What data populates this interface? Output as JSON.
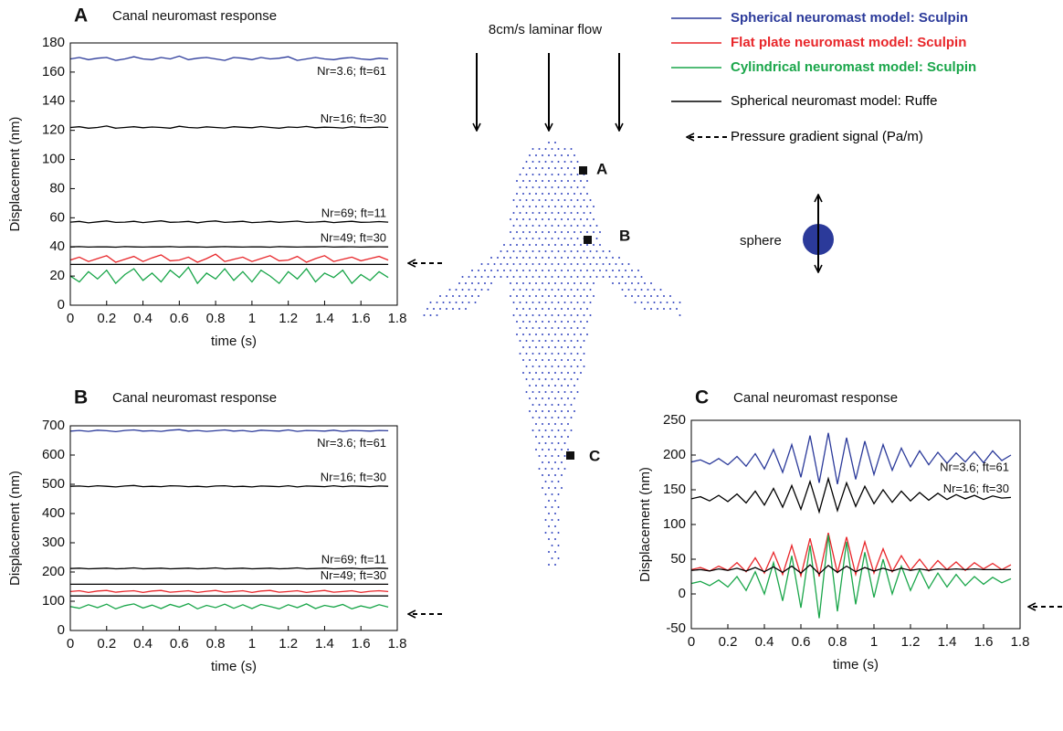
{
  "chart_data": [
    {
      "type": "line",
      "panel": "A",
      "title": "Canal neuromast response",
      "xlabel": "time (s)",
      "ylabel": "Displacement (nm)",
      "x": [
        0,
        0.05,
        0.1,
        0.15,
        0.2,
        0.25,
        0.3,
        0.35,
        0.4,
        0.45,
        0.5,
        0.55,
        0.6,
        0.65,
        0.7,
        0.75,
        0.8,
        0.85,
        0.9,
        0.95,
        1,
        1.05,
        1.1,
        1.15,
        1.2,
        1.25,
        1.3,
        1.35,
        1.4,
        1.45,
        1.5,
        1.55,
        1.6,
        1.65,
        1.7,
        1.75
      ],
      "xlim": [
        0,
        1.8
      ],
      "xticks": [
        0,
        0.2,
        0.4,
        0.6,
        0.8,
        1,
        1.2,
        1.4,
        1.6,
        1.8
      ],
      "ylim": [
        0,
        180
      ],
      "yticks": [
        0,
        20,
        40,
        60,
        80,
        100,
        120,
        140,
        160,
        180
      ],
      "series": [
        {
          "color": "#2b3a9a",
          "label": "Nr=3.6; ft=61",
          "values": [
            169,
            170,
            168.5,
            169.5,
            170,
            168,
            169,
            170.5,
            169,
            168.5,
            170,
            169,
            171,
            168.5,
            169.5,
            170,
            169,
            168,
            170,
            169.5,
            168.5,
            170,
            169,
            169.5,
            170.5,
            168,
            169,
            170,
            169,
            168.5,
            169.5,
            170,
            169,
            168.5,
            169.5,
            169
          ]
        },
        {
          "color": "#000000",
          "label": "Nr=16; ft=30",
          "values": [
            122,
            122.5,
            121.5,
            122,
            123,
            121.5,
            122,
            122.5,
            121.8,
            122.3,
            122,
            121.5,
            122.8,
            122,
            121.7,
            122.4,
            122,
            121.6,
            122.5,
            122.1,
            121.8,
            122.6,
            122,
            121.5,
            122.3,
            122,
            122.7,
            121.8,
            122.2,
            122,
            121.6,
            122.4,
            122,
            121.9,
            122.3,
            122
          ]
        },
        {
          "color": "#000000",
          "label": "Nr=69; ft=11",
          "values": [
            57,
            57.5,
            56.5,
            57.2,
            57.8,
            56.8,
            57,
            57.6,
            56.7,
            57.3,
            57.9,
            56.9,
            57.1,
            57.5,
            56.6,
            57.4,
            57.8,
            56.8,
            57.2,
            57.6,
            56.7,
            57,
            57.5,
            56.9,
            57.3,
            57.7,
            56.8,
            57.1,
            57.5,
            56.7,
            57.2,
            57.6,
            56.9,
            57,
            57.4,
            57
          ]
        },
        {
          "color": "#000000",
          "label": "Nr=49; ft=30",
          "values": [
            40,
            40.2,
            39.9,
            40.1,
            40,
            39.8,
            40.2,
            40,
            39.9,
            40.1,
            40,
            40.2,
            39.9,
            40,
            40.1,
            39.8,
            40,
            40.2,
            40,
            39.9,
            40.1,
            40,
            39.8,
            40.2,
            40,
            39.9,
            40.1,
            40,
            40.2,
            39.9,
            40,
            40.1,
            39.9,
            40,
            40.1,
            40
          ]
        },
        {
          "color": "#e8262a",
          "values": [
            31,
            33,
            30,
            32,
            34,
            29.5,
            31.5,
            33.5,
            30,
            32.5,
            34.5,
            30.5,
            31,
            33,
            29.5,
            32,
            35,
            30,
            31.5,
            33,
            30,
            32,
            34,
            30.5,
            31,
            33.5,
            29.5,
            32,
            34,
            30,
            31.5,
            33,
            30.5,
            32,
            33.5,
            31
          ]
        },
        {
          "color": "#000000",
          "values": [
            28,
            28,
            28,
            28,
            28,
            28,
            28,
            28,
            28,
            28,
            28,
            28,
            28,
            28,
            28,
            28,
            28,
            28,
            28,
            28,
            28,
            28,
            28,
            28,
            28,
            28,
            28,
            28,
            28,
            28,
            28,
            28,
            28,
            28,
            28,
            28
          ]
        },
        {
          "color": "#1aa64a",
          "values": [
            20,
            16,
            23,
            18,
            24,
            15,
            21,
            25,
            17,
            22,
            16,
            24,
            19,
            26,
            15,
            22,
            18,
            25,
            17,
            23,
            16,
            24,
            20,
            15,
            23,
            18,
            25,
            16,
            22,
            19,
            24,
            15,
            21,
            17,
            23,
            19
          ]
        }
      ]
    },
    {
      "type": "line",
      "panel": "B",
      "title": "Canal neuromast response",
      "xlabel": "time (s)",
      "ylabel": "Displacement (nm)",
      "x": [
        0,
        0.05,
        0.1,
        0.15,
        0.2,
        0.25,
        0.3,
        0.35,
        0.4,
        0.45,
        0.5,
        0.55,
        0.6,
        0.65,
        0.7,
        0.75,
        0.8,
        0.85,
        0.9,
        0.95,
        1,
        1.05,
        1.1,
        1.15,
        1.2,
        1.25,
        1.3,
        1.35,
        1.4,
        1.45,
        1.5,
        1.55,
        1.6,
        1.65,
        1.7,
        1.75
      ],
      "xlim": [
        0,
        1.8
      ],
      "xticks": [
        0,
        0.2,
        0.4,
        0.6,
        0.8,
        1,
        1.2,
        1.4,
        1.6,
        1.8
      ],
      "ylim": [
        0,
        700
      ],
      "yticks": [
        0,
        100,
        200,
        300,
        400,
        500,
        600,
        700
      ],
      "series": [
        {
          "color": "#2b3a9a",
          "label": "Nr=3.6; ft=61",
          "values": [
            682,
            684,
            681,
            685,
            683,
            680,
            684,
            686,
            682,
            683,
            681,
            685,
            687,
            682,
            684,
            681,
            683,
            686,
            682,
            684,
            680,
            685,
            683,
            682,
            686,
            681,
            684,
            683,
            682,
            685,
            681,
            684,
            683,
            682,
            684,
            683
          ]
        },
        {
          "color": "#000000",
          "label": "Nr=16; ft=30",
          "values": [
            493,
            494,
            492,
            495,
            493,
            491,
            494,
            496,
            492,
            493,
            492,
            495,
            494,
            492,
            493,
            491,
            494,
            495,
            492,
            493,
            491,
            494,
            493,
            492,
            495,
            491,
            494,
            493,
            492,
            495,
            492,
            494,
            493,
            492,
            494,
            493
          ]
        },
        {
          "color": "#000000",
          "label": "Nr=69; ft=11",
          "values": [
            212,
            213,
            211,
            212,
            213,
            211,
            212,
            214,
            211,
            212,
            213,
            211,
            212,
            213,
            211,
            212,
            214,
            211,
            212,
            213,
            211,
            212,
            213,
            211,
            212,
            214,
            211,
            212,
            213,
            211,
            212,
            213,
            211,
            212,
            213,
            212
          ]
        },
        {
          "color": "#000000",
          "label": "Nr=49; ft=30",
          "values": [
            158,
            158,
            158,
            158,
            158,
            158,
            158,
            158,
            158,
            158,
            158,
            158,
            158,
            158,
            158,
            158,
            158,
            158,
            158,
            158,
            158,
            158,
            158,
            158,
            158,
            158,
            158,
            158,
            158,
            158,
            158,
            158,
            158,
            158,
            158,
            158
          ]
        },
        {
          "color": "#e8262a",
          "values": [
            133,
            136,
            130,
            135,
            137,
            131,
            134,
            136,
            130,
            135,
            137,
            131,
            133,
            136,
            130,
            134,
            137,
            131,
            133,
            136,
            130,
            135,
            137,
            131,
            133,
            136,
            130,
            134,
            137,
            131,
            133,
            136,
            130,
            134,
            136,
            133
          ]
        },
        {
          "color": "#000000",
          "values": [
            118,
            118,
            118,
            118,
            118,
            118,
            118,
            118,
            118,
            118,
            118,
            118,
            118,
            118,
            118,
            118,
            118,
            118,
            118,
            118,
            118,
            118,
            118,
            118,
            118,
            118,
            118,
            118,
            118,
            118,
            118,
            118,
            118,
            118,
            118,
            118
          ]
        },
        {
          "color": "#1aa64a",
          "values": [
            82,
            76,
            88,
            78,
            90,
            74,
            85,
            91,
            77,
            87,
            75,
            89,
            80,
            92,
            74,
            86,
            78,
            90,
            76,
            88,
            75,
            89,
            82,
            74,
            88,
            78,
            91,
            75,
            86,
            80,
            89,
            74,
            84,
            77,
            88,
            80
          ]
        }
      ]
    },
    {
      "type": "line",
      "panel": "C",
      "title": "Canal neuromast response",
      "xlabel": "time (s)",
      "ylabel": "Displacement (nm)",
      "x": [
        0,
        0.05,
        0.1,
        0.15,
        0.2,
        0.25,
        0.3,
        0.35,
        0.4,
        0.45,
        0.5,
        0.55,
        0.6,
        0.65,
        0.7,
        0.75,
        0.8,
        0.85,
        0.9,
        0.95,
        1,
        1.05,
        1.1,
        1.15,
        1.2,
        1.25,
        1.3,
        1.35,
        1.4,
        1.45,
        1.5,
        1.55,
        1.6,
        1.65,
        1.7,
        1.75
      ],
      "xlim": [
        0,
        1.8
      ],
      "xticks": [
        0,
        0.2,
        0.4,
        0.6,
        0.8,
        1,
        1.2,
        1.4,
        1.6,
        1.8
      ],
      "ylim": [
        -50,
        250
      ],
      "yticks": [
        -50,
        0,
        50,
        100,
        150,
        200,
        250
      ],
      "series": [
        {
          "color": "#2b3a9a",
          "label": "Nr=3.6; ft=61",
          "values": [
            190,
            193,
            187,
            195,
            186,
            198,
            184,
            202,
            180,
            208,
            175,
            215,
            168,
            228,
            160,
            232,
            158,
            225,
            165,
            220,
            172,
            215,
            178,
            210,
            183,
            206,
            186,
            204,
            188,
            203,
            190,
            205,
            189,
            206,
            192,
            200
          ]
        },
        {
          "color": "#000000",
          "label": "Nr=16; ft=30",
          "values": [
            137,
            140,
            134,
            142,
            133,
            144,
            131,
            148,
            128,
            152,
            125,
            156,
            122,
            162,
            118,
            166,
            120,
            160,
            126,
            155,
            130,
            150,
            132,
            148,
            134,
            146,
            135,
            145,
            136,
            143,
            137,
            142,
            136,
            141,
            138,
            139
          ]
        },
        {
          "color": "#e8262a",
          "values": [
            35,
            38,
            33,
            40,
            34,
            45,
            32,
            52,
            30,
            60,
            28,
            70,
            26,
            80,
            25,
            88,
            30,
            82,
            28,
            75,
            30,
            65,
            32,
            55,
            34,
            50,
            33,
            48,
            35,
            46,
            34,
            45,
            36,
            44,
            35,
            42
          ]
        },
        {
          "color": "#1aa64a",
          "values": [
            15,
            18,
            12,
            20,
            10,
            25,
            5,
            32,
            0,
            45,
            -10,
            55,
            -20,
            70,
            -35,
            85,
            -25,
            75,
            -15,
            60,
            -5,
            50,
            0,
            40,
            5,
            35,
            8,
            30,
            10,
            28,
            12,
            25,
            14,
            24,
            16,
            22
          ]
        },
        {
          "color": "#000000",
          "values": [
            34,
            35,
            33,
            36,
            34,
            37,
            33,
            38,
            32,
            39,
            31,
            40,
            30,
            42,
            29,
            41,
            31,
            40,
            32,
            38,
            33,
            37,
            33,
            37,
            34,
            36,
            34,
            36,
            35,
            36,
            35,
            36,
            35,
            35,
            35,
            35
          ]
        }
      ]
    }
  ],
  "legend": [
    {
      "text": "Spherical neuromast model: Sculpin",
      "color": "#2b3a9a",
      "bold": true
    },
    {
      "text": "Flat plate neuromast model: Sculpin",
      "color": "#e8262a",
      "bold": true
    },
    {
      "text": "Cylindrical neuromast model: Sculpin",
      "color": "#1aa64a",
      "bold": true
    },
    {
      "text": "Spherical neuromast model: Ruffe",
      "color": "#000000",
      "bold": false
    },
    {
      "text": "Pressure gradient signal (Pa/m)",
      "color": "#000000",
      "bold": false
    }
  ],
  "diagram": {
    "flow_label": "8cm/s laminar flow",
    "points": [
      "A",
      "B",
      "C"
    ],
    "sphere_label": "sphere"
  }
}
